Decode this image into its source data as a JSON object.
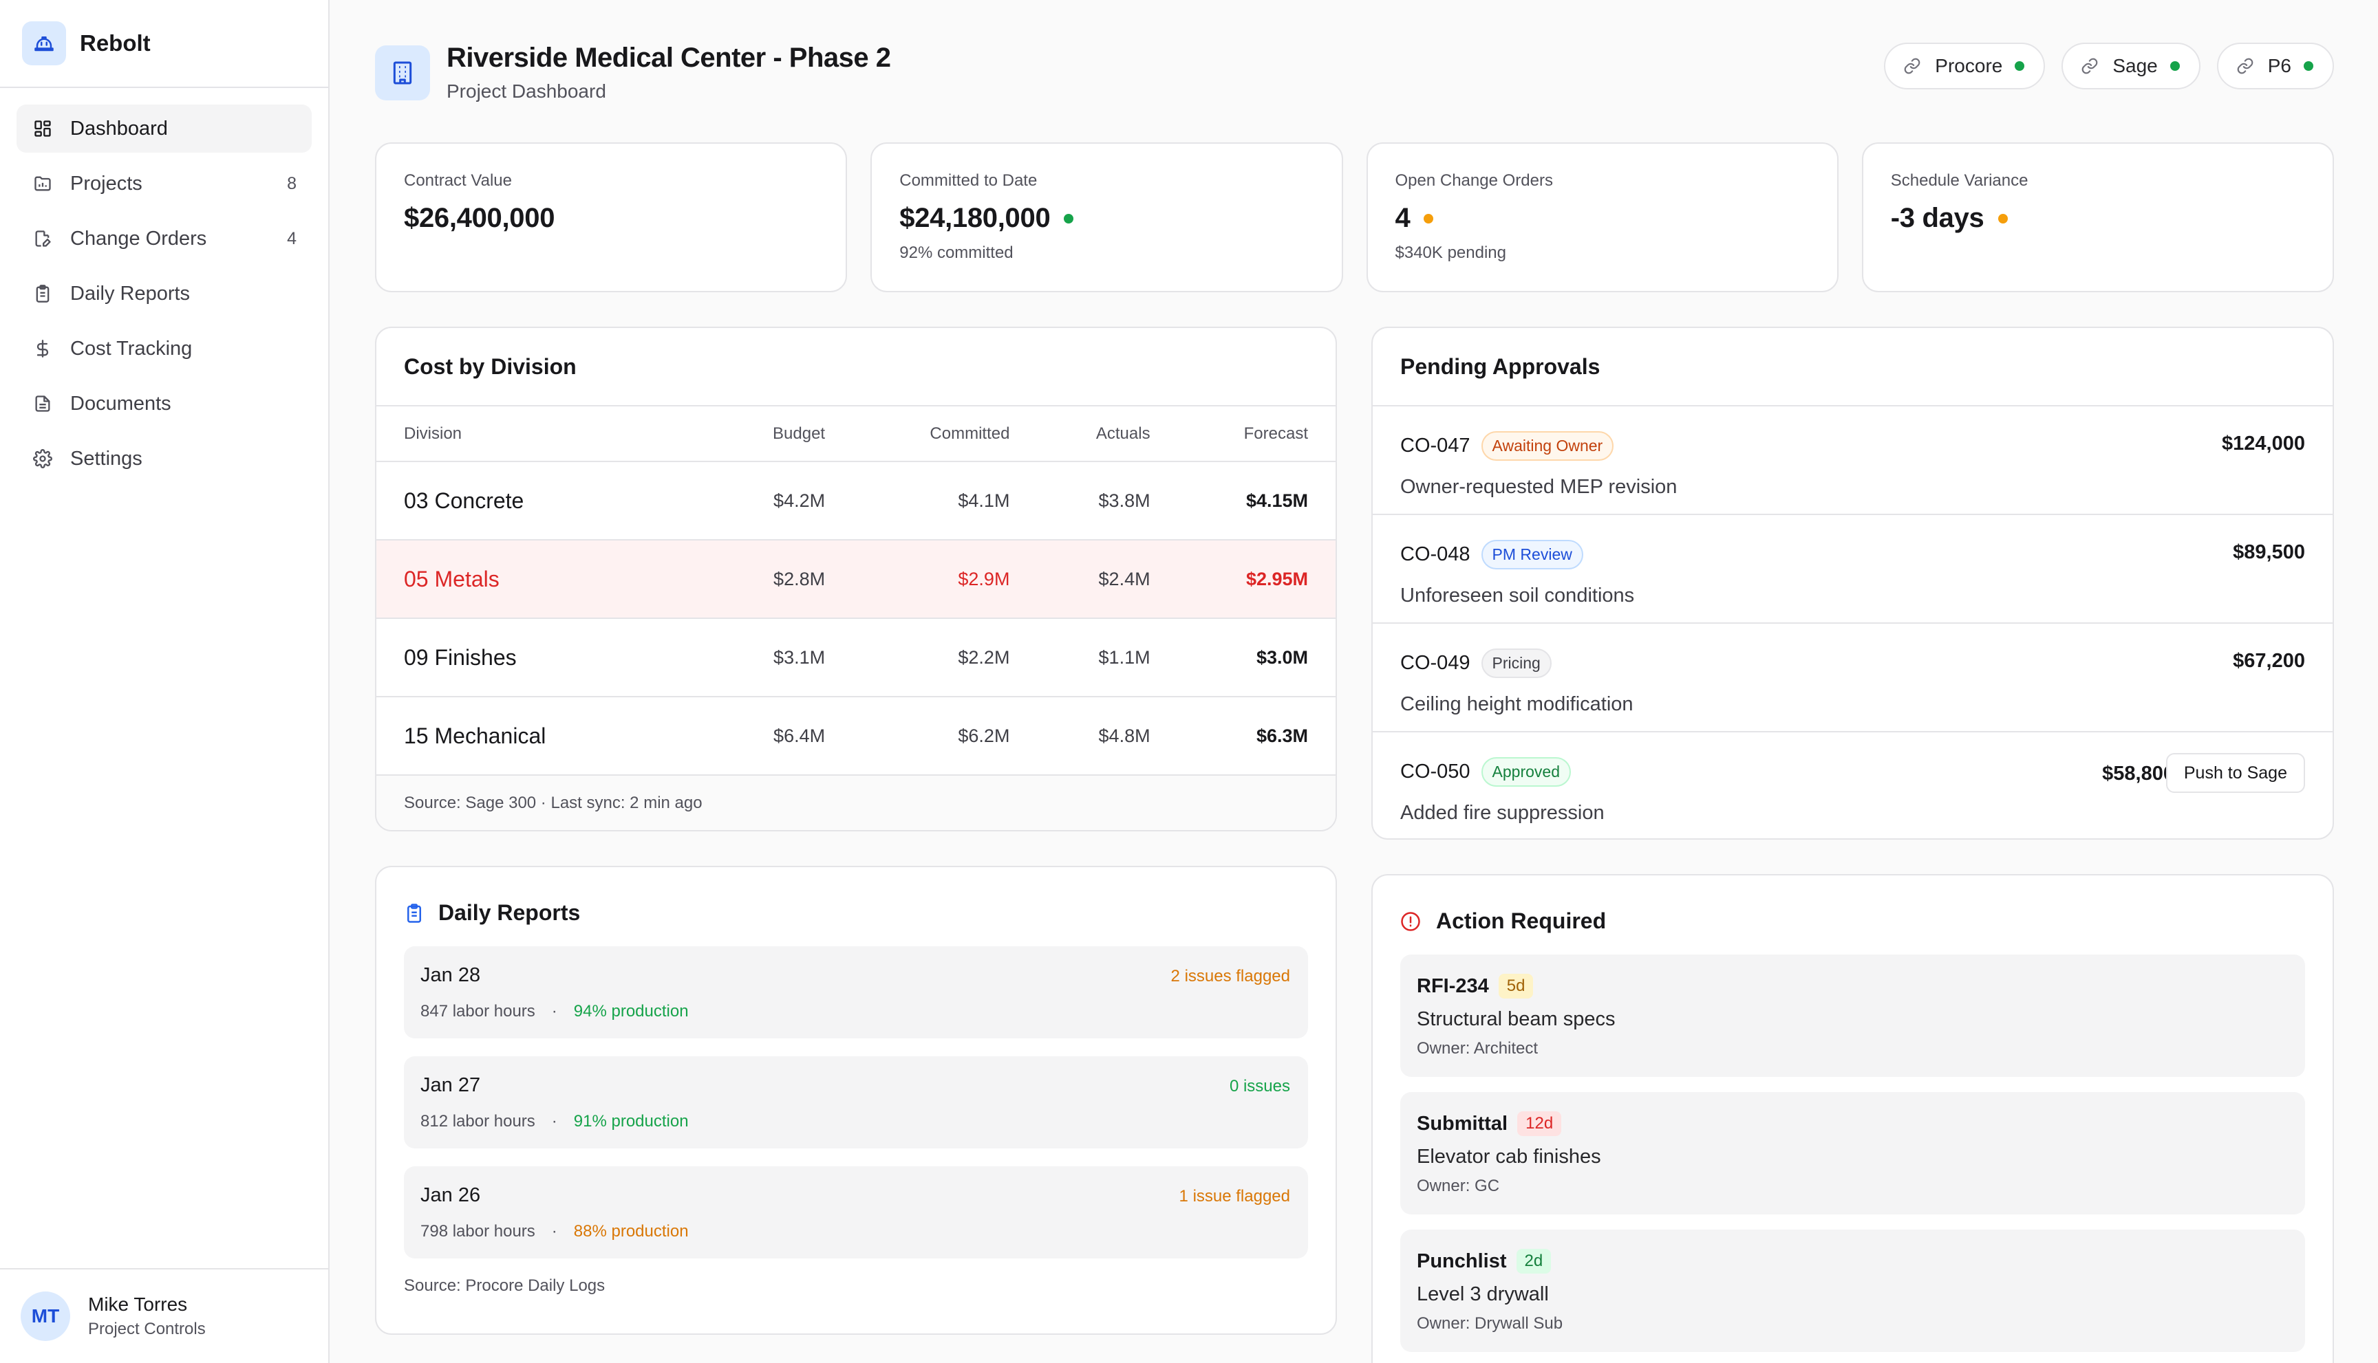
{
  "app": {
    "name": "Rebolt"
  },
  "sidebar": {
    "items": [
      {
        "label": "Dashboard",
        "icon": "dashboard-icon",
        "count": "",
        "active": true
      },
      {
        "label": "Projects",
        "icon": "folder-icon",
        "count": "8"
      },
      {
        "label": "Change Orders",
        "icon": "file-edit-icon",
        "count": "4"
      },
      {
        "label": "Daily Reports",
        "icon": "clipboard-icon",
        "count": ""
      },
      {
        "label": "Cost Tracking",
        "icon": "dollar-icon",
        "count": ""
      },
      {
        "label": "Documents",
        "icon": "document-icon",
        "count": ""
      },
      {
        "label": "Settings",
        "icon": "gear-icon",
        "count": ""
      }
    ],
    "user": {
      "initials": "MT",
      "name": "Mike Torres",
      "role": "Project Controls"
    }
  },
  "header": {
    "title": "Riverside Medical Center - Phase 2",
    "subtitle": "Project Dashboard",
    "integrations": [
      {
        "label": "Procore",
        "status_color": "#16a34a"
      },
      {
        "label": "Sage",
        "status_color": "#16a34a"
      },
      {
        "label": "P6",
        "status_color": "#16a34a"
      }
    ]
  },
  "kpis": [
    {
      "label": "Contract Value",
      "value": "$26,400,000",
      "sub": "",
      "dot_color": ""
    },
    {
      "label": "Committed to Date",
      "value": "$24,180,000",
      "sub": "92% committed",
      "dot_color": "#16a34a"
    },
    {
      "label": "Open Change Orders",
      "value": "4",
      "sub": "$340K pending",
      "dot_color": "#f59e0b"
    },
    {
      "label": "Schedule Variance",
      "value": "-3 days",
      "sub": "",
      "dot_color": "#f59e0b"
    }
  ],
  "cost": {
    "title": "Cost by Division",
    "columns": [
      "Division",
      "Budget",
      "Committed",
      "Actuals",
      "Forecast"
    ],
    "rows": [
      {
        "division": "03 Concrete",
        "budget": "$4.2M",
        "committed": "$4.1M",
        "actuals": "$3.8M",
        "forecast": "$4.15M",
        "over": false
      },
      {
        "division": "05 Metals",
        "budget": "$2.8M",
        "committed": "$2.9M",
        "actuals": "$2.4M",
        "forecast": "$2.95M",
        "over": true
      },
      {
        "division": "09 Finishes",
        "budget": "$3.1M",
        "committed": "$2.2M",
        "actuals": "$1.1M",
        "forecast": "$3.0M",
        "over": false
      },
      {
        "division": "15 Mechanical",
        "budget": "$6.4M",
        "committed": "$6.2M",
        "actuals": "$4.8M",
        "forecast": "$6.3M",
        "over": false
      }
    ],
    "footer": "Source: Sage 300 · Last sync: 2 min ago"
  },
  "approvals": {
    "title": "Pending Approvals",
    "items": [
      {
        "id": "CO-047",
        "badge": "Awaiting Owner",
        "badge_color": "#c2410c",
        "badge_bg": "#fff7ed",
        "badge_border": "#fed7aa",
        "desc": "Owner-requested MEP revision",
        "amount": "$124,000",
        "action": ""
      },
      {
        "id": "CO-048",
        "badge": "PM Review",
        "badge_color": "#1d4ed8",
        "badge_bg": "#eff6ff",
        "badge_border": "#bfdbfe",
        "desc": "Unforeseen soil conditions",
        "amount": "$89,500",
        "action": ""
      },
      {
        "id": "CO-049",
        "badge": "Pricing",
        "badge_color": "#3f3f46",
        "badge_bg": "#f4f4f5",
        "badge_border": "#e4e4e7",
        "desc": "Ceiling height modification",
        "amount": "$67,200",
        "action": ""
      },
      {
        "id": "CO-050",
        "badge": "Approved",
        "badge_color": "#15803d",
        "badge_bg": "#f0fdf4",
        "badge_border": "#bbf7d0",
        "desc": "Added fire suppression",
        "amount": "$58,800",
        "action": "Push to Sage"
      }
    ]
  },
  "daily": {
    "title": "Daily Reports",
    "items": [
      {
        "date": "Jan 28",
        "flag": "2 issues flagged",
        "flag_color": "#d97706",
        "hours": "847 labor hours",
        "production": "94% production",
        "production_color": "#16a34a"
      },
      {
        "date": "Jan 27",
        "flag": "0 issues",
        "flag_color": "#16a34a",
        "hours": "812 labor hours",
        "production": "91% production",
        "production_color": "#16a34a"
      },
      {
        "date": "Jan 26",
        "flag": "1 issue flagged",
        "flag_color": "#d97706",
        "hours": "798 labor hours",
        "production": "88% production",
        "production_color": "#d97706"
      }
    ],
    "separator": "·",
    "footer": "Source: Procore Daily Logs"
  },
  "action": {
    "title": "Action Required",
    "items": [
      {
        "id": "RFI-234",
        "age": "5d",
        "age_color": "#a16207",
        "age_bg": "#fef3c7",
        "desc": "Structural beam specs",
        "owner": "Owner: Architect"
      },
      {
        "id": "Submittal",
        "age": "12d",
        "age_color": "#dc2626",
        "age_bg": "#fee2e2",
        "desc": "Elevator cab finishes",
        "owner": "Owner: GC"
      },
      {
        "id": "Punchlist",
        "age": "2d",
        "age_color": "#15803d",
        "age_bg": "#dcfce7",
        "desc": "Level 3 drywall",
        "owner": "Owner: Drywall Sub"
      }
    ]
  }
}
